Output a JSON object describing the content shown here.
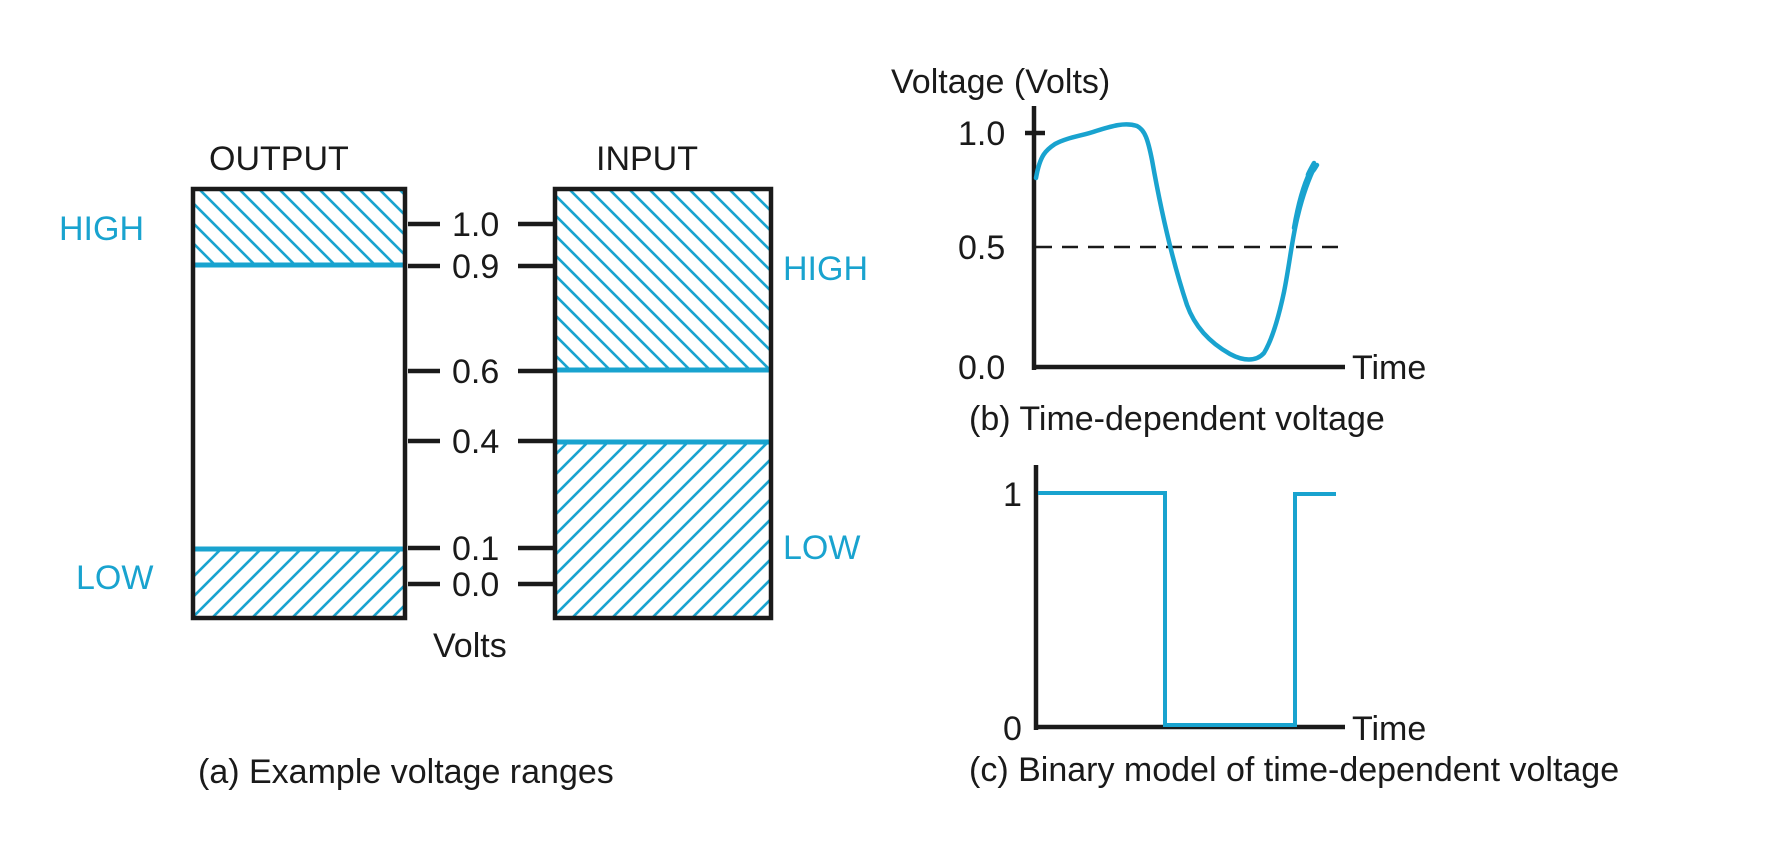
{
  "colors": {
    "accent": "#19a3cf",
    "ink": "#1a1a1a"
  },
  "panel_a": {
    "output_title": "OUTPUT",
    "input_title": "INPUT",
    "output_high": "HIGH",
    "output_low": "LOW",
    "input_high": "HIGH",
    "input_low": "LOW",
    "units": "Volts",
    "ticks": [
      "1.0",
      "0.9",
      "0.6",
      "0.4",
      "0.1",
      "0.0"
    ],
    "caption": "(a) Example voltage ranges"
  },
  "panel_b": {
    "ylabel": "Voltage (Volts)",
    "ticks": [
      "1.0",
      "0.5",
      "0.0"
    ],
    "xlabel": "Time",
    "caption": "(b) Time-dependent voltage"
  },
  "panel_c": {
    "ticks": [
      "1",
      "0"
    ],
    "xlabel": "Time",
    "caption": "(c) Binary model of time-dependent voltage"
  }
}
